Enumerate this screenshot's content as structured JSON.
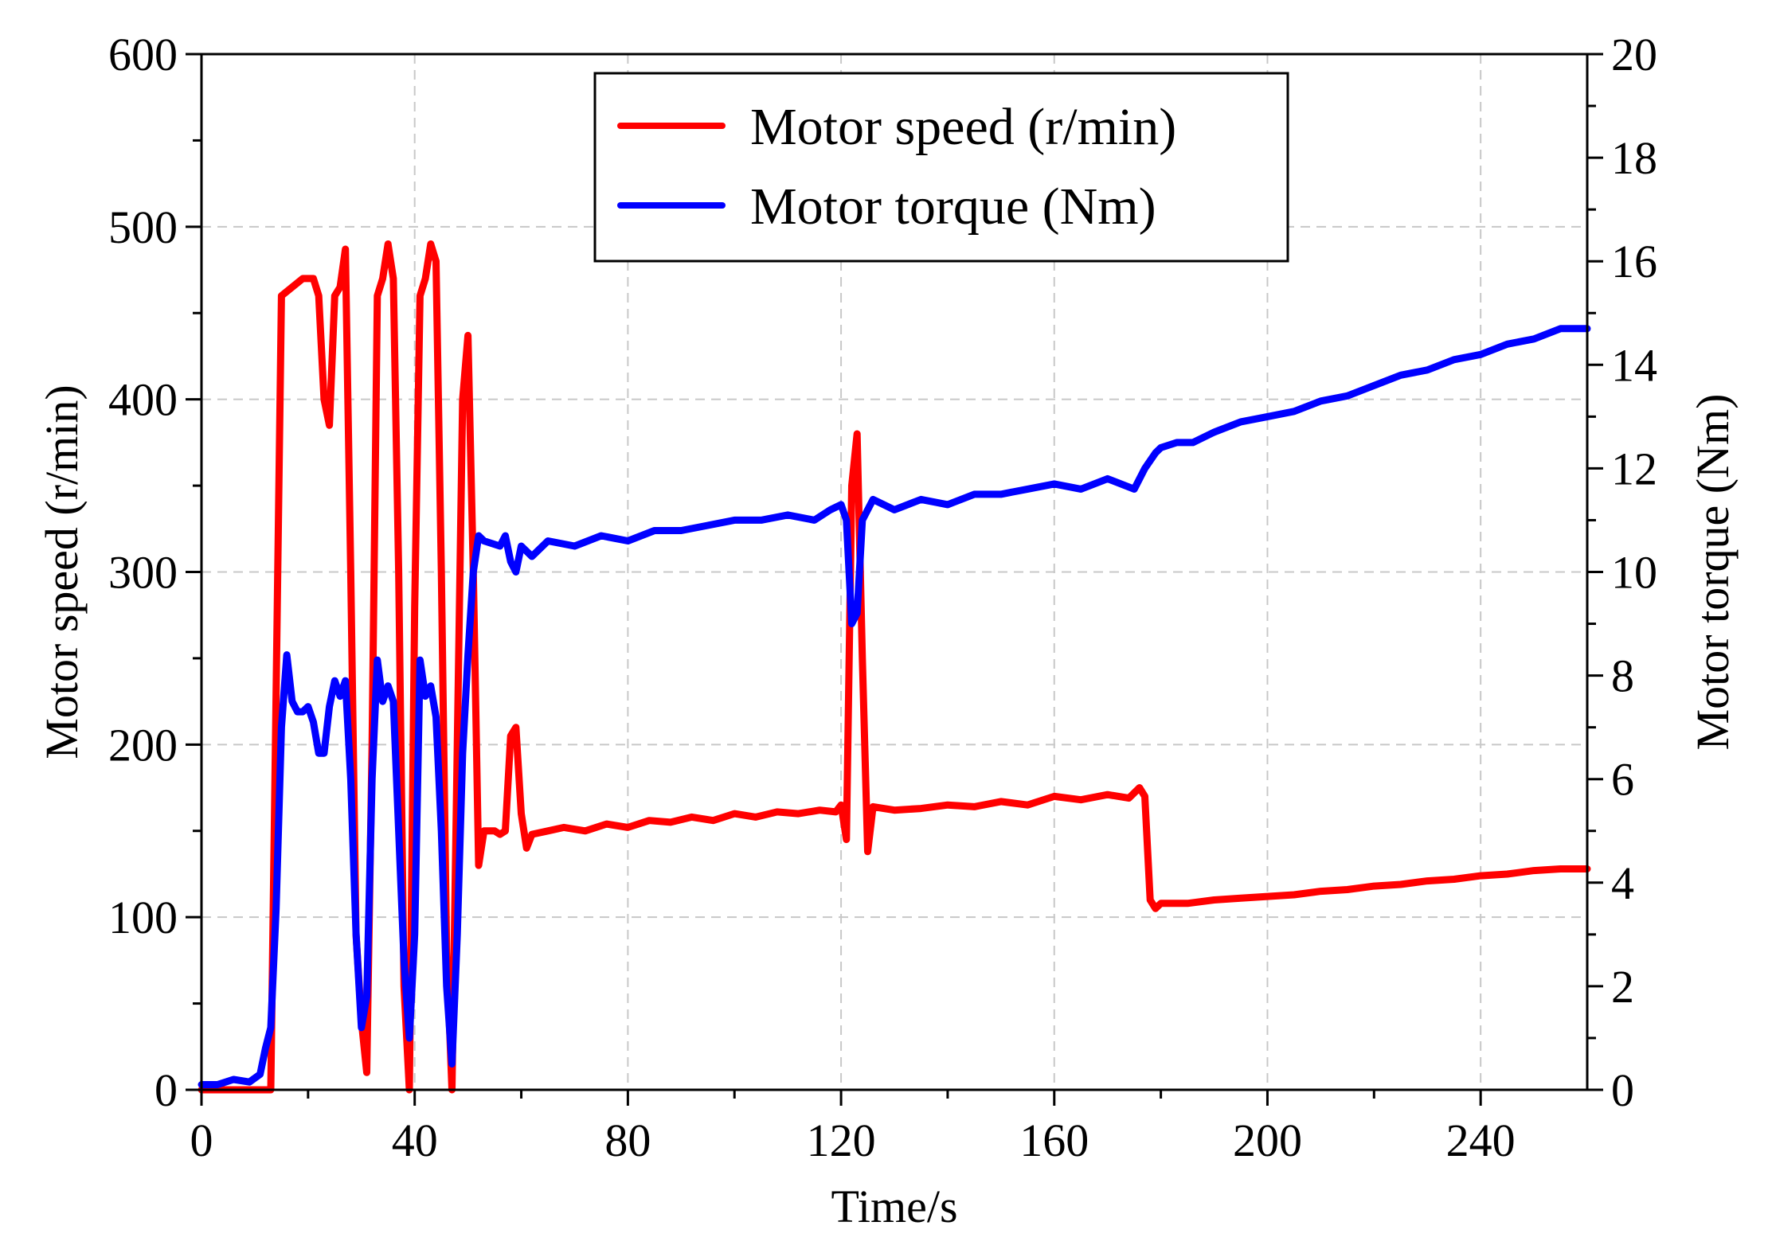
{
  "chart_data": {
    "type": "line",
    "xlabel": "Time/s",
    "ylabel": "Motor speed (r/min)",
    "ylabel_right": "Motor torque (Nm)",
    "xlim": [
      0,
      260
    ],
    "ylim": [
      0,
      600
    ],
    "ylim_right": [
      0,
      20
    ],
    "x_ticks": [
      0,
      40,
      80,
      120,
      160,
      200,
      240
    ],
    "y_ticks": [
      0,
      100,
      200,
      300,
      400,
      500,
      600
    ],
    "y_ticks_right": [
      0,
      2,
      4,
      6,
      8,
      10,
      12,
      14,
      16,
      18,
      20
    ],
    "grid": true,
    "legend_position": "top-center",
    "series": [
      {
        "name": "Motor speed (r/min)",
        "axis": "left",
        "color": "#ff0000",
        "points": [
          [
            0,
            0
          ],
          [
            13,
            0
          ],
          [
            15,
            460
          ],
          [
            17,
            465
          ],
          [
            19,
            470
          ],
          [
            21,
            470
          ],
          [
            22,
            460
          ],
          [
            23,
            400
          ],
          [
            24,
            385
          ],
          [
            25,
            460
          ],
          [
            26,
            465
          ],
          [
            27,
            487
          ],
          [
            28,
            300
          ],
          [
            29,
            90
          ],
          [
            30,
            40
          ],
          [
            31,
            10
          ],
          [
            32,
            200
          ],
          [
            33,
            460
          ],
          [
            34,
            470
          ],
          [
            35,
            490
          ],
          [
            36,
            470
          ],
          [
            37,
            300
          ],
          [
            38,
            60
          ],
          [
            39,
            0
          ],
          [
            40,
            280
          ],
          [
            41,
            460
          ],
          [
            42,
            470
          ],
          [
            43,
            490
          ],
          [
            44,
            480
          ],
          [
            45,
            300
          ],
          [
            46,
            80
          ],
          [
            47,
            0
          ],
          [
            48,
            200
          ],
          [
            49,
            400
          ],
          [
            50,
            437
          ],
          [
            51,
            300
          ],
          [
            52,
            130
          ],
          [
            53,
            150
          ],
          [
            54,
            150
          ],
          [
            55,
            150
          ],
          [
            56,
            148
          ],
          [
            57,
            150
          ],
          [
            58,
            205
          ],
          [
            59,
            210
          ],
          [
            60,
            160
          ],
          [
            61,
            140
          ],
          [
            62,
            148
          ],
          [
            65,
            150
          ],
          [
            68,
            152
          ],
          [
            72,
            150
          ],
          [
            76,
            154
          ],
          [
            80,
            152
          ],
          [
            84,
            156
          ],
          [
            88,
            155
          ],
          [
            92,
            158
          ],
          [
            96,
            156
          ],
          [
            100,
            160
          ],
          [
            104,
            158
          ],
          [
            108,
            161
          ],
          [
            112,
            160
          ],
          [
            116,
            162
          ],
          [
            119,
            161
          ],
          [
            120,
            165
          ],
          [
            121,
            145
          ],
          [
            122,
            350
          ],
          [
            123,
            380
          ],
          [
            124,
            250
          ],
          [
            125,
            138
          ],
          [
            126,
            164
          ],
          [
            130,
            162
          ],
          [
            135,
            163
          ],
          [
            140,
            165
          ],
          [
            145,
            164
          ],
          [
            150,
            167
          ],
          [
            155,
            165
          ],
          [
            160,
            170
          ],
          [
            165,
            168
          ],
          [
            170,
            171
          ],
          [
            174,
            169
          ],
          [
            176,
            175
          ],
          [
            177,
            170
          ],
          [
            178,
            110
          ],
          [
            179,
            105
          ],
          [
            180,
            108
          ],
          [
            185,
            108
          ],
          [
            190,
            110
          ],
          [
            195,
            111
          ],
          [
            200,
            112
          ],
          [
            205,
            113
          ],
          [
            210,
            115
          ],
          [
            215,
            116
          ],
          [
            220,
            118
          ],
          [
            225,
            119
          ],
          [
            230,
            121
          ],
          [
            235,
            122
          ],
          [
            240,
            124
          ],
          [
            245,
            125
          ],
          [
            250,
            127
          ],
          [
            255,
            128
          ],
          [
            260,
            128
          ]
        ]
      },
      {
        "name": "Motor torque (Nm)",
        "axis": "right",
        "color": "#0000ff",
        "points": [
          [
            0,
            0.1
          ],
          [
            3,
            0.1
          ],
          [
            6,
            0.2
          ],
          [
            9,
            0.15
          ],
          [
            11,
            0.3
          ],
          [
            12,
            0.8
          ],
          [
            13,
            1.2
          ],
          [
            14,
            3.5
          ],
          [
            15,
            7
          ],
          [
            16,
            8.4
          ],
          [
            17,
            7.5
          ],
          [
            18,
            7.3
          ],
          [
            19,
            7.3
          ],
          [
            20,
            7.4
          ],
          [
            21,
            7.1
          ],
          [
            22,
            6.5
          ],
          [
            23,
            6.5
          ],
          [
            24,
            7.4
          ],
          [
            25,
            7.9
          ],
          [
            26,
            7.6
          ],
          [
            27,
            7.9
          ],
          [
            28,
            6
          ],
          [
            29,
            3
          ],
          [
            30,
            1.2
          ],
          [
            31,
            1.8
          ],
          [
            32,
            6
          ],
          [
            33,
            8.3
          ],
          [
            34,
            7.5
          ],
          [
            35,
            7.8
          ],
          [
            36,
            7.5
          ],
          [
            37,
            5
          ],
          [
            38,
            2.5
          ],
          [
            39,
            1
          ],
          [
            40,
            3
          ],
          [
            41,
            8.3
          ],
          [
            42,
            7.6
          ],
          [
            43,
            7.8
          ],
          [
            44,
            7.2
          ],
          [
            45,
            5
          ],
          [
            46,
            2
          ],
          [
            47,
            0.5
          ],
          [
            48,
            3
          ],
          [
            49,
            6.5
          ],
          [
            50,
            8.4
          ],
          [
            51,
            10
          ],
          [
            52,
            10.7
          ],
          [
            53,
            10.6
          ],
          [
            56,
            10.5
          ],
          [
            57,
            10.7
          ],
          [
            58,
            10.2
          ],
          [
            59,
            10.0
          ],
          [
            60,
            10.5
          ],
          [
            62,
            10.3
          ],
          [
            65,
            10.6
          ],
          [
            70,
            10.5
          ],
          [
            75,
            10.7
          ],
          [
            80,
            10.6
          ],
          [
            85,
            10.8
          ],
          [
            90,
            10.8
          ],
          [
            95,
            10.9
          ],
          [
            100,
            11.0
          ],
          [
            105,
            11.0
          ],
          [
            110,
            11.1
          ],
          [
            115,
            11.0
          ],
          [
            118,
            11.2
          ],
          [
            120,
            11.3
          ],
          [
            121,
            11.0
          ],
          [
            122,
            9.0
          ],
          [
            123,
            9.2
          ],
          [
            124,
            11.0
          ],
          [
            126,
            11.4
          ],
          [
            130,
            11.2
          ],
          [
            135,
            11.4
          ],
          [
            140,
            11.3
          ],
          [
            145,
            11.5
          ],
          [
            150,
            11.5
          ],
          [
            155,
            11.6
          ],
          [
            160,
            11.7
          ],
          [
            165,
            11.6
          ],
          [
            170,
            11.8
          ],
          [
            175,
            11.6
          ],
          [
            177,
            12.0
          ],
          [
            179,
            12.3
          ],
          [
            180,
            12.4
          ],
          [
            183,
            12.5
          ],
          [
            186,
            12.5
          ],
          [
            190,
            12.7
          ],
          [
            195,
            12.9
          ],
          [
            200,
            13.0
          ],
          [
            205,
            13.1
          ],
          [
            210,
            13.3
          ],
          [
            215,
            13.4
          ],
          [
            220,
            13.6
          ],
          [
            225,
            13.8
          ],
          [
            230,
            13.9
          ],
          [
            235,
            14.1
          ],
          [
            240,
            14.2
          ],
          [
            245,
            14.4
          ],
          [
            250,
            14.5
          ],
          [
            255,
            14.7
          ],
          [
            260,
            14.7
          ]
        ]
      }
    ]
  }
}
